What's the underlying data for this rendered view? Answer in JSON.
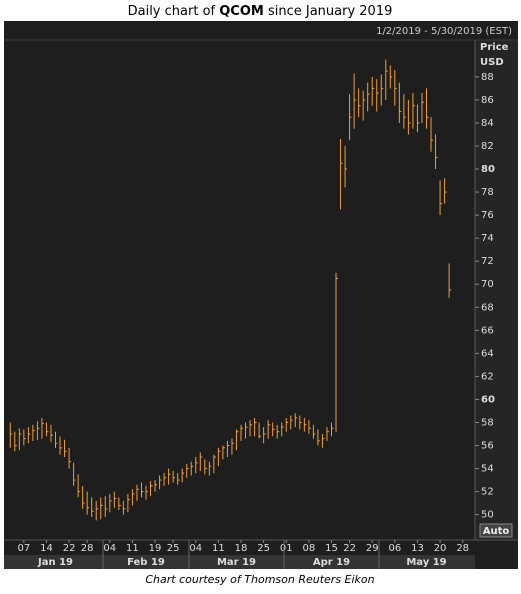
{
  "header": {
    "title_parts": [
      "Daily chart of ",
      "QCOM",
      " since January 2019"
    ]
  },
  "chart_data": {
    "type": "ohlc",
    "date_range": "1/2/2019 - 5/30/2019 (EST)",
    "y_axis_label": [
      "Price",
      "USD"
    ],
    "color": "#f0a030",
    "categories": [
      "1/2/2019",
      "1/3/2019",
      "1/4/2019",
      "1/7/2019",
      "1/8/2019",
      "1/9/2019",
      "1/10/2019",
      "1/11/2019",
      "1/14/2019",
      "1/15/2019",
      "1/16/2019",
      "1/17/2019",
      "1/18/2019",
      "1/22/2019",
      "1/23/2019",
      "1/24/2019",
      "1/25/2019",
      "1/28/2019",
      "1/29/2019",
      "1/30/2019",
      "1/31/2019",
      "2/1/2019",
      "2/4/2019",
      "2/5/2019",
      "2/6/2019",
      "2/7/2019",
      "2/8/2019",
      "2/11/2019",
      "2/12/2019",
      "2/13/2019",
      "2/14/2019",
      "2/15/2019",
      "2/19/2019",
      "2/20/2019",
      "2/21/2019",
      "2/22/2019",
      "2/25/2019",
      "2/26/2019",
      "2/27/2019",
      "2/28/2019",
      "3/1/2019",
      "3/4/2019",
      "3/5/2019",
      "3/6/2019",
      "3/7/2019",
      "3/8/2019",
      "3/11/2019",
      "3/12/2019",
      "3/13/2019",
      "3/14/2019",
      "3/15/2019",
      "3/18/2019",
      "3/19/2019",
      "3/20/2019",
      "3/21/2019",
      "3/22/2019",
      "3/25/2019",
      "3/26/2019",
      "3/27/2019",
      "3/28/2019",
      "3/29/2019",
      "4/1/2019",
      "4/2/2019",
      "4/3/2019",
      "4/4/2019",
      "4/5/2019",
      "4/8/2019",
      "4/9/2019",
      "4/10/2019",
      "4/11/2019",
      "4/12/2019",
      "4/15/2019",
      "4/16/2019",
      "4/17/2019",
      "4/18/2019",
      "4/22/2019",
      "4/23/2019",
      "4/24/2019",
      "4/25/2019",
      "4/26/2019",
      "4/29/2019",
      "4/30/2019",
      "5/1/2019",
      "5/2/2019",
      "5/3/2019",
      "5/6/2019",
      "5/7/2019",
      "5/8/2019",
      "5/9/2019",
      "5/10/2019",
      "5/13/2019",
      "5/14/2019",
      "5/15/2019",
      "5/16/2019",
      "5/17/2019",
      "5/20/2019",
      "5/21/2019",
      "5/22/2019",
      "5/23/2019",
      "5/24/2019",
      "5/28/2019",
      "5/29/2019",
      "5/30/2019"
    ],
    "high": [
      58.0,
      57.2,
      57.5,
      57.4,
      57.6,
      57.8,
      58.1,
      58.4,
      58.0,
      57.8,
      57.2,
      56.8,
      56.5,
      55.8,
      54.5,
      53.5,
      52.5,
      52.0,
      51.5,
      51.2,
      51.5,
      51.6,
      51.8,
      52.0,
      51.5,
      51.2,
      51.8,
      52.2,
      52.6,
      52.8,
      52.5,
      52.9,
      53.0,
      53.4,
      53.6,
      54.0,
      53.8,
      53.6,
      54.0,
      54.4,
      54.6,
      55.0,
      55.4,
      54.8,
      54.6,
      55.2,
      55.8,
      56.0,
      56.4,
      56.6,
      57.4,
      57.8,
      58.0,
      58.2,
      58.4,
      58.0,
      57.6,
      58.2,
      58.0,
      57.8,
      58.0,
      58.4,
      58.6,
      58.8,
      58.6,
      58.4,
      58.2,
      57.8,
      57.4,
      57.0,
      57.6,
      58.0,
      71.0,
      82.6,
      82.0,
      86.5,
      88.3,
      87.0,
      86.8,
      87.5,
      88.0,
      87.8,
      88.2,
      89.5,
      89.0,
      88.6,
      87.5,
      86.5,
      86.0,
      86.6,
      85.6,
      86.6,
      87.0,
      84.5,
      83.0,
      79.0,
      79.2,
      71.8,
      null,
      null,
      null,
      null,
      null
    ],
    "low": [
      55.8,
      55.5,
      55.6,
      56.0,
      56.2,
      56.4,
      56.5,
      56.6,
      56.8,
      56.3,
      55.8,
      55.2,
      55.0,
      54.0,
      52.5,
      51.5,
      50.5,
      50.0,
      49.8,
      49.5,
      49.6,
      49.8,
      50.2,
      50.6,
      50.4,
      50.0,
      50.2,
      50.8,
      51.2,
      51.5,
      51.3,
      51.6,
      52.0,
      52.2,
      52.5,
      52.6,
      52.8,
      52.6,
      52.8,
      53.2,
      53.4,
      53.6,
      53.8,
      53.5,
      53.4,
      53.6,
      54.2,
      54.8,
      55.0,
      55.2,
      55.6,
      56.4,
      56.6,
      56.8,
      56.8,
      56.6,
      56.2,
      56.6,
      56.8,
      56.6,
      56.8,
      57.2,
      57.4,
      57.6,
      57.4,
      57.2,
      57.0,
      56.6,
      56.0,
      55.8,
      56.4,
      56.8,
      57.2,
      76.5,
      78.4,
      82.5,
      83.5,
      84.5,
      84.2,
      85.0,
      85.5,
      85.0,
      85.5,
      86.0,
      87.0,
      85.5,
      84.0,
      83.5,
      83.0,
      83.5,
      83.2,
      84.0,
      83.5,
      81.5,
      80.0,
      76.0,
      77.0,
      68.8,
      null,
      null,
      null,
      null,
      null
    ],
    "close": [
      57.0,
      56.0,
      57.0,
      56.6,
      57.0,
      57.3,
      57.5,
      57.9,
      57.2,
      56.9,
      56.2,
      55.8,
      55.5,
      54.6,
      53.0,
      52.0,
      51.0,
      50.6,
      50.3,
      50.5,
      50.8,
      50.5,
      51.2,
      51.4,
      50.8,
      50.5,
      51.3,
      51.8,
      52.2,
      52.0,
      52.0,
      52.5,
      52.6,
      53.0,
      53.2,
      53.5,
      53.2,
      53.0,
      53.6,
      54.0,
      54.2,
      54.5,
      55.0,
      54.0,
      54.2,
      55.0,
      55.5,
      55.8,
      56.0,
      56.2,
      57.2,
      57.5,
      57.6,
      57.8,
      58.0,
      56.8,
      57.0,
      57.8,
      57.4,
      57.2,
      57.6,
      58.0,
      58.2,
      58.4,
      58.0,
      57.8,
      57.5,
      57.0,
      56.4,
      56.6,
      57.2,
      57.5,
      70.5,
      80.5,
      80.0,
      84.5,
      86.0,
      85.5,
      86.0,
      86.5,
      87.0,
      86.6,
      87.0,
      88.5,
      88.0,
      87.0,
      85.0,
      84.5,
      84.0,
      85.5,
      84.0,
      85.8,
      84.5,
      82.5,
      81.0,
      77.0,
      78.0,
      69.5,
      null,
      null,
      null,
      null,
      null
    ],
    "ylim": [
      47.8,
      91.2
    ],
    "yticks": [
      50,
      52,
      54,
      56,
      58,
      60,
      62,
      64,
      66,
      68,
      70,
      72,
      74,
      76,
      78,
      80,
      82,
      84,
      86,
      88
    ],
    "xticks": [
      {
        "value": "1/7/2019",
        "label": "07"
      },
      {
        "value": "1/14/2019",
        "label": "14"
      },
      {
        "value": "1/22/2019",
        "label": "22"
      },
      {
        "value": "1/28/2019",
        "label": "28"
      },
      {
        "value": "2/4/2019",
        "label": "04"
      },
      {
        "value": "2/11/2019",
        "label": "11"
      },
      {
        "value": "2/19/2019",
        "label": "19"
      },
      {
        "value": "2/25/2019",
        "label": "25"
      },
      {
        "value": "3/4/2019",
        "label": "04"
      },
      {
        "value": "3/11/2019",
        "label": "11"
      },
      {
        "value": "3/18/2019",
        "label": "18"
      },
      {
        "value": "3/25/2019",
        "label": "25"
      },
      {
        "value": "4/1/2019",
        "label": "01"
      },
      {
        "value": "4/8/2019",
        "label": "08"
      },
      {
        "value": "4/15/2019",
        "label": "15"
      },
      {
        "value": "4/22/2019",
        "label": "22"
      },
      {
        "value": "4/29/2019",
        "label": "29"
      },
      {
        "value": "5/6/2019",
        "label": "06"
      },
      {
        "value": "5/13/2019",
        "label": "13"
      },
      {
        "value": "5/20/2019",
        "label": "20"
      },
      {
        "value": "5/28/2019",
        "label": "28"
      }
    ],
    "months": [
      {
        "value": "1/2/2019",
        "label": "Jan 19"
      },
      {
        "value": "2/1/2019",
        "label": "Feb 19"
      },
      {
        "value": "3/1/2019",
        "label": "Mar 19"
      },
      {
        "value": "4/1/2019",
        "label": "Apr 19"
      },
      {
        "value": "5/1/2019",
        "label": "May 19"
      }
    ],
    "auto_button": "Auto"
  },
  "caption": "Chart courtesy of Thomson Reuters Eikon"
}
